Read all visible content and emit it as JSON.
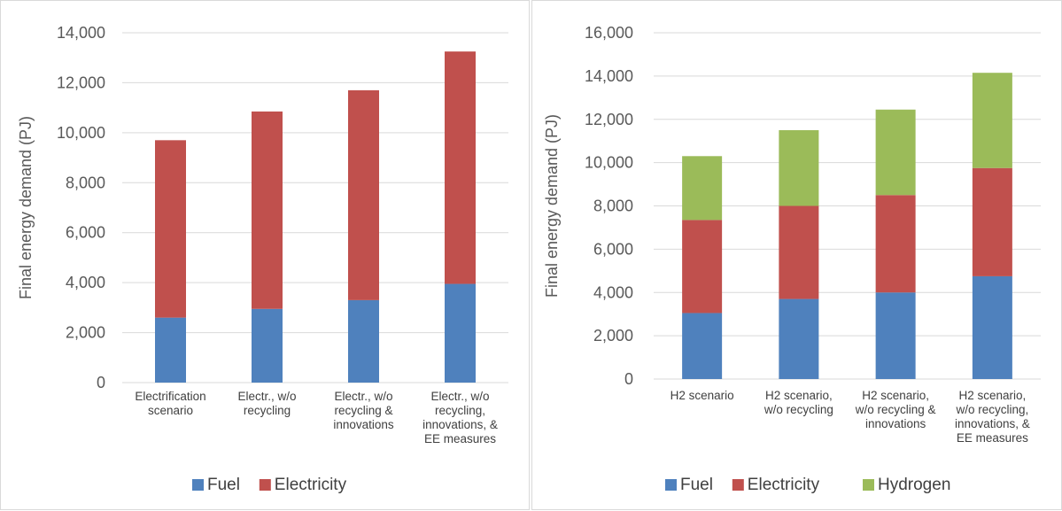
{
  "chart_data": [
    {
      "type": "bar",
      "stacked": true,
      "title": "",
      "xlabel": "",
      "ylabel": "Final energy demand (PJ)",
      "ylim": [
        0,
        14000
      ],
      "yticks": [
        "0",
        "2,000",
        "4,000",
        "6,000",
        "8,000",
        "10,000",
        "12,000",
        "14,000"
      ],
      "grid": true,
      "legend_position": "bottom",
      "categories": [
        [
          "Electrification",
          "scenario"
        ],
        [
          "Electr., w/o",
          "recycling"
        ],
        [
          "Electr., w/o",
          "recycling &",
          "innovations"
        ],
        [
          "Electr., w/o",
          "recycling,",
          "innovations, &",
          "EE measures"
        ]
      ],
      "series": [
        {
          "name": "Fuel",
          "color": "#4f81bd",
          "values": [
            2600,
            2950,
            3300,
            3950
          ]
        },
        {
          "name": "Electricity",
          "color": "#c0504d",
          "values": [
            7100,
            7900,
            8400,
            9300
          ]
        }
      ]
    },
    {
      "type": "bar",
      "stacked": true,
      "title": "",
      "xlabel": "",
      "ylabel": "Final energy demand (PJ)",
      "ylim": [
        0,
        16000
      ],
      "yticks": [
        "0",
        "2,000",
        "4,000",
        "6,000",
        "8,000",
        "10,000",
        "12,000",
        "14,000",
        "16,000"
      ],
      "grid": true,
      "legend_position": "bottom",
      "categories": [
        [
          "H2 scenario"
        ],
        [
          "H2 scenario,",
          "w/o recycling"
        ],
        [
          "H2 scenario,",
          "w/o recycling &",
          "innovations"
        ],
        [
          "H2 scenario,",
          "w/o recycling,",
          "innovations, &",
          "EE measures"
        ]
      ],
      "series": [
        {
          "name": "Fuel",
          "color": "#4f81bd",
          "values": [
            3050,
            3700,
            4000,
            4750
          ]
        },
        {
          "name": "Electricity",
          "color": "#c0504d",
          "values": [
            4300,
            4300,
            4500,
            5000
          ]
        },
        {
          "name": "Hydrogen",
          "color": "#9bbb59",
          "values": [
            2950,
            3500,
            3950,
            4400
          ]
        }
      ]
    }
  ]
}
